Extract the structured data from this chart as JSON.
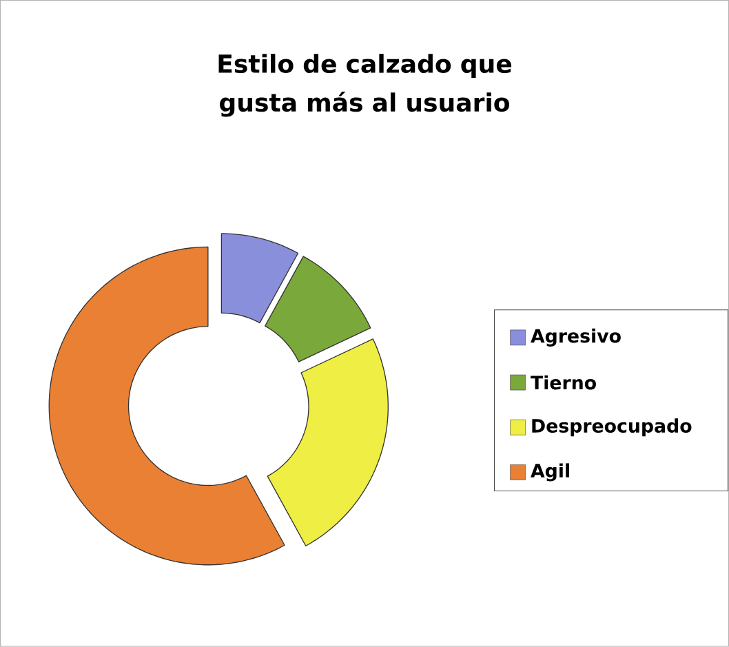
{
  "chart_data": {
    "type": "donut",
    "title": "Estilo de calzado que gusta más al usuario",
    "categories": [
      "Agresivo",
      "Tierno",
      "Despreocupado",
      "Agil"
    ],
    "values": [
      8,
      10,
      24,
      58
    ],
    "colors": [
      "#8a8fdb",
      "#7aa83a",
      "#eeee44",
      "#e98034"
    ],
    "legend": "right"
  }
}
